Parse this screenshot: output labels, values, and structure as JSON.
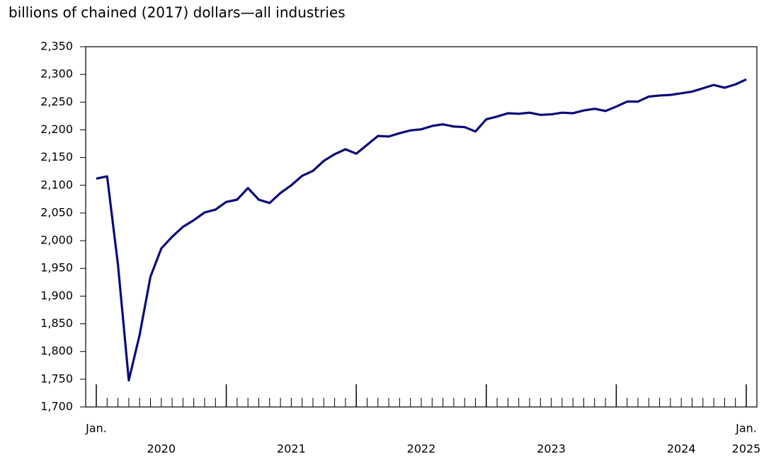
{
  "chart_data": {
    "type": "line",
    "title": "billions of chained (2017) dollars—all industries",
    "categories": [
      "Jan.",
      null,
      null,
      null,
      null,
      null,
      null,
      null,
      null,
      null,
      null,
      null,
      null,
      null,
      null,
      null,
      null,
      null,
      null,
      null,
      null,
      null,
      null,
      null,
      null,
      null,
      null,
      null,
      null,
      null,
      null,
      null,
      null,
      null,
      null,
      null,
      null,
      null,
      null,
      null,
      null,
      null,
      null,
      null,
      null,
      null,
      null,
      null,
      null,
      null,
      null,
      null,
      null,
      null,
      null,
      null,
      null,
      null,
      null,
      null,
      "Jan."
    ],
    "year_labels": [
      "2020",
      "2021",
      "2022",
      "2023",
      "2024",
      "2025"
    ],
    "series": [
      {
        "color": "#0a0a78",
        "values": [
          2112,
          2116,
          1957,
          1748,
          1830,
          1935,
          1986,
          2007,
          2025,
          2037,
          2051,
          2056,
          2070,
          2074,
          2095,
          2074,
          2068,
          2086,
          2100,
          2117,
          2126,
          2144,
          2156,
          2165,
          2157,
          2173,
          2189,
          2188,
          2194,
          2199,
          2201,
          2207,
          2210,
          2206,
          2205,
          2197,
          2219,
          2224,
          2230,
          2229,
          2231,
          2227,
          2228,
          2231,
          2230,
          2235,
          2238,
          2234,
          2242,
          2251,
          2251,
          2260,
          2262,
          2263,
          2266,
          2269,
          2275,
          2281,
          2276,
          2282,
          2291
        ]
      }
    ],
    "ylim": [
      1700,
      2350
    ],
    "yticks": [
      {
        "value": 1700,
        "label": "1,700"
      },
      {
        "value": 1750,
        "label": "1,750"
      },
      {
        "value": 1800,
        "label": "1,800"
      },
      {
        "value": 1850,
        "label": "1,850"
      },
      {
        "value": 1900,
        "label": "1,900"
      },
      {
        "value": 1950,
        "label": "1,950"
      },
      {
        "value": 2000,
        "label": "2,000"
      },
      {
        "value": 2050,
        "label": "2,050"
      },
      {
        "value": 2100,
        "label": "2,100"
      },
      {
        "value": 2150,
        "label": "2,150"
      },
      {
        "value": 2200,
        "label": "2,200"
      },
      {
        "value": 2250,
        "label": "2,250"
      },
      {
        "value": 2300,
        "label": "2,300"
      },
      {
        "value": 2350,
        "label": "2,350"
      }
    ],
    "grid": false
  }
}
